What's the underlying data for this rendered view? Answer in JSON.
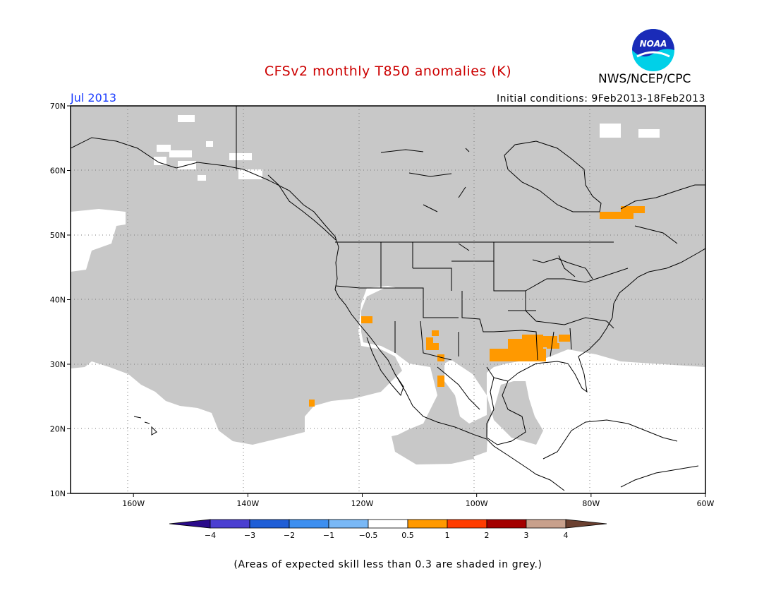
{
  "title": "CFSv2 monthly T850 anomalies (K)",
  "agency": "NWS/NCEP/CPC",
  "logo_text": "NOAA",
  "valid_month": "Jul 2013",
  "initial_conditions": "Initial conditions: 9Feb2013-18Feb2013",
  "footnote": "(Areas of expected skill less than 0.3 are shaded in grey.)",
  "map": {
    "lat_labels": [
      {
        "value": 70,
        "label": "70N"
      },
      {
        "value": 60,
        "label": "60N"
      },
      {
        "value": 50,
        "label": "50N"
      },
      {
        "value": 40,
        "label": "40N"
      },
      {
        "value": 30,
        "label": "30N"
      },
      {
        "value": 20,
        "label": "20N"
      },
      {
        "value": 10,
        "label": "10N"
      }
    ],
    "lon_labels": [
      {
        "value": -160,
        "label": "160W"
      },
      {
        "value": -140,
        "label": "140W"
      },
      {
        "value": -120,
        "label": "120W"
      },
      {
        "value": -100,
        "label": "100W"
      },
      {
        "value": -80,
        "label": "80W"
      },
      {
        "value": -60,
        "label": "60W"
      }
    ],
    "lon_range": [
      -171,
      -60
    ],
    "lat_range": [
      10,
      70
    ],
    "colors": {
      "skill_grey": "#c8c8c8",
      "land_line": "#000000",
      "positive_anomaly": "#ff9900"
    }
  },
  "legend": {
    "colors": [
      "#2a0a8a",
      "#4b3fd1",
      "#1f5ed6",
      "#3d8ff0",
      "#79b8f6",
      "#ffffff",
      "#ff9900",
      "#ff3c00",
      "#a30000",
      "#c8a08c",
      "#6b4030"
    ],
    "labels": [
      "−4",
      "−3",
      "−2",
      "−1",
      "−0.5",
      "0.5",
      "1",
      "2",
      "3",
      "4"
    ]
  }
}
